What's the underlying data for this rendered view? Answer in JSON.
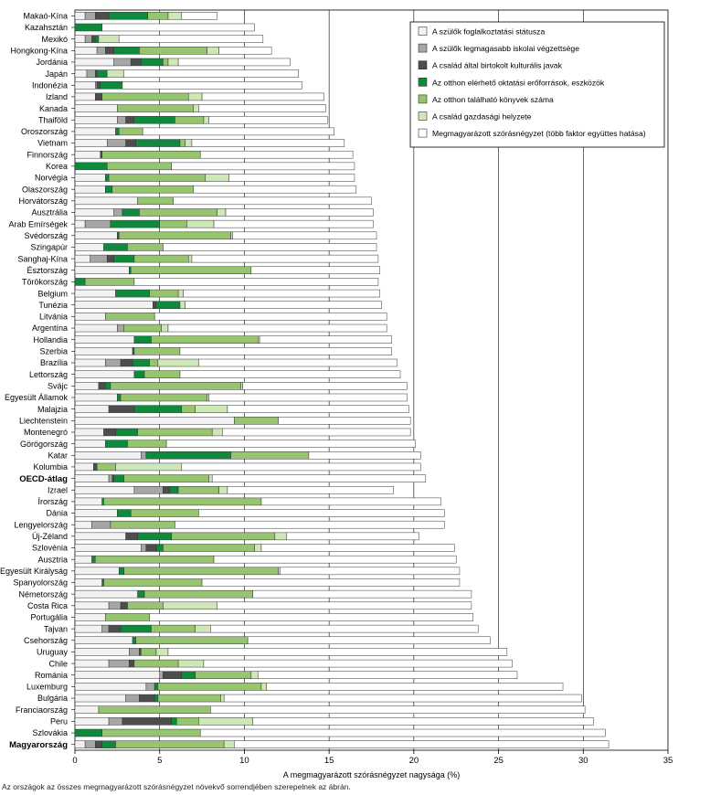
{
  "chart_data": {
    "type": "bar",
    "orientation": "horizontal",
    "stacked": true,
    "xlabel": "A megmagyarázott szórásnégyzet nagysága (%)",
    "xlim": [
      0,
      35
    ],
    "xticks": [
      0,
      5,
      10,
      15,
      20,
      25,
      30,
      35
    ],
    "grid": true,
    "legend_position": "top-right",
    "footnote": "Az országok az összes megmagyarázott szórásnégyzet növekvő sorrendjében szerepelnek az ábrán.",
    "bold_categories": [
      "OECD-átlag",
      "Magyarország"
    ],
    "series": [
      {
        "name": "A szülők foglalkoztatási státusza",
        "color": "#f2f2f2"
      },
      {
        "name": "A szülők legmagasabb iskolai végzettsége",
        "color": "#a6a6a6"
      },
      {
        "name": "A család által birtokolt kulturális javak",
        "color": "#4d4d4d"
      },
      {
        "name": "Az otthon elérhető oktatási erőforrások, eszközök",
        "color": "#0f8a3c"
      },
      {
        "name": "Az otthon található könyvek száma",
        "color": "#96c46f"
      },
      {
        "name": "A család gazdasági helyzete",
        "color": "#cfe6b8"
      },
      {
        "name": "Megmagyarázott szórásnégyzet (több faktor együttes hatása)",
        "color": "#ffffff"
      }
    ],
    "categories": [
      "Makaó-Kína",
      "Kazahsztán",
      "Mexikó",
      "Hongkong-Kína",
      "Jordánia",
      "Japán",
      "Indonézia",
      "Izland",
      "Kanada",
      "Thaiföld",
      "Oroszország",
      "Vietnam",
      "Finnország",
      "Korea",
      "Norvégia",
      "Olaszország",
      "Horvátország",
      "Ausztrália",
      "Arab Emírségek",
      "Svédország",
      "Szingapúr",
      "Sanghaj-Kína",
      "Észtország",
      "Törökország",
      "Belgium",
      "Tunézia",
      "Litvánia",
      "Argentína",
      "Hollandia",
      "Szerbia",
      "Brazília",
      "Lettország",
      "Svájc",
      "Egyesült Államok",
      "Malajzia",
      "Liechtenstein",
      "Montenegró",
      "Görögország",
      "Katar",
      "Kolumbia",
      "OECD-átlag",
      "Izrael",
      "Írország",
      "Dánia",
      "Lengyelország",
      "Új-Zéland",
      "Szlovénia",
      "Ausztria",
      "Egyesült Királyság",
      "Spanyolország",
      "Németország",
      "Costa Rica",
      "Portugália",
      "Tajvan",
      "Csehország",
      "Uruguay",
      "Chile",
      "Románia",
      "Luxemburg",
      "Bulgária",
      "Franciaország",
      "Peru",
      "Szlovákia",
      "Magyarország"
    ],
    "values": [
      [
        0.6,
        0.6,
        0.8,
        2.3,
        1.2,
        0.8,
        2.1
      ],
      [
        0,
        0,
        0,
        1.6,
        0,
        0,
        9.0
      ],
      [
        0.6,
        0.4,
        0.2,
        0.2,
        0,
        1.2,
        8.5
      ],
      [
        1.3,
        0.5,
        0.5,
        1.5,
        4.0,
        0.7,
        3.1
      ],
      [
        2.3,
        1.0,
        0.6,
        1.3,
        0.3,
        0.6,
        6.6
      ],
      [
        0.7,
        0.5,
        0.1,
        0.6,
        0,
        1.0,
        10.3
      ],
      [
        1.2,
        0.1,
        0.2,
        1.3,
        0,
        0,
        10.6
      ],
      [
        1.2,
        0,
        0.4,
        0,
        5.1,
        0.8,
        7.2
      ],
      [
        2.5,
        0,
        0,
        0,
        4.5,
        0.3,
        7.5
      ],
      [
        2.5,
        0.5,
        0.5,
        2.4,
        1.7,
        0.3,
        7.0
      ],
      [
        2.4,
        0,
        0,
        0.2,
        1.4,
        0,
        11.3
      ],
      [
        1.9,
        1.1,
        0.6,
        2.6,
        0.3,
        0.4,
        9.0
      ],
      [
        1.5,
        0,
        0.1,
        0,
        5.8,
        0,
        9.0
      ],
      [
        0,
        0,
        0,
        1.9,
        3.8,
        0,
        10.8
      ],
      [
        1.8,
        0,
        0,
        0.2,
        5.7,
        1.4,
        7.4
      ],
      [
        1.8,
        0,
        0,
        0.4,
        4.8,
        0,
        9.6
      ],
      [
        3.7,
        0,
        0,
        0,
        2.1,
        0,
        11.7
      ],
      [
        2.3,
        0.5,
        0,
        1.0,
        4.6,
        0.5,
        8.7
      ],
      [
        0.6,
        1.5,
        0,
        2.9,
        1.6,
        1.6,
        9.4
      ],
      [
        2.5,
        0,
        0.1,
        0,
        6.6,
        0.1,
        8.5
      ],
      [
        1.7,
        0,
        0,
        1.4,
        2.1,
        0,
        12.6
      ],
      [
        0.9,
        1.0,
        0.4,
        1.2,
        3.2,
        0.2,
        11.0
      ],
      [
        3.2,
        0,
        0,
        0.1,
        7.1,
        0,
        7.6
      ],
      [
        0,
        0,
        0,
        0.6,
        2.9,
        0,
        14.4
      ],
      [
        2.4,
        0,
        0,
        2.0,
        1.7,
        0.3,
        11.6
      ],
      [
        4.6,
        0,
        0.2,
        1.4,
        0,
        0.3,
        11.6
      ],
      [
        1.8,
        0,
        0,
        0,
        2.9,
        0,
        13.7
      ],
      [
        2.5,
        0.4,
        0,
        0,
        2.2,
        0.4,
        12.9
      ],
      [
        3.5,
        0,
        0,
        1.0,
        6.3,
        0.1,
        7.8
      ],
      [
        3.4,
        0,
        0.1,
        0,
        2.7,
        0,
        12.5
      ],
      [
        1.8,
        0.9,
        0.7,
        1.0,
        0.5,
        2.4,
        11.7
      ],
      [
        3.5,
        0,
        0,
        0.6,
        2.1,
        0,
        13.0
      ],
      [
        1.4,
        0,
        0.4,
        0.3,
        7.7,
        0.1,
        9.7
      ],
      [
        2.5,
        0,
        0,
        0.2,
        5.1,
        0.1,
        11.7
      ],
      [
        2.0,
        0,
        1.5,
        2.8,
        0.8,
        1.9,
        10.7
      ],
      [
        9.4,
        0,
        0,
        0,
        2.6,
        0,
        7.8
      ],
      [
        1.7,
        0,
        0.7,
        1.3,
        4.4,
        0.6,
        11.1
      ],
      [
        1.8,
        0,
        0,
        1.3,
        2.3,
        0,
        14.7
      ],
      [
        3.9,
        0.3,
        0,
        5.0,
        4.6,
        0,
        6.6
      ],
      [
        1.1,
        0,
        0.2,
        0,
        1.1,
        3.9,
        14.1
      ],
      [
        2.0,
        0.2,
        0.1,
        0.6,
        5.0,
        0.2,
        12.6
      ],
      [
        3.5,
        1.7,
        0.4,
        0.5,
        2.4,
        0.5,
        9.8
      ],
      [
        1.6,
        0,
        0,
        0.1,
        9.3,
        0,
        10.6
      ],
      [
        2.5,
        0,
        0,
        0.8,
        4.0,
        0,
        14.5
      ],
      [
        1.0,
        1.1,
        0,
        0,
        3.8,
        0,
        15.9
      ],
      [
        3.0,
        0,
        0.7,
        2.0,
        6.1,
        0.7,
        7.8
      ],
      [
        3.9,
        0.3,
        0.6,
        0.4,
        5.4,
        0.4,
        11.4
      ],
      [
        1.0,
        0,
        0,
        0.2,
        7.0,
        0,
        14.3
      ],
      [
        2.6,
        0,
        0,
        0.3,
        9.1,
        0.1,
        10.6
      ],
      [
        1.6,
        0,
        0.1,
        0,
        5.8,
        0,
        15.2
      ],
      [
        3.7,
        0,
        0,
        0.4,
        6.4,
        0,
        12.9
      ],
      [
        2.0,
        0.7,
        0.4,
        0,
        2.1,
        3.2,
        15.0
      ],
      [
        1.8,
        0,
        0,
        0,
        2.6,
        0,
        19.1
      ],
      [
        1.6,
        0.4,
        0.7,
        1.8,
        2.6,
        0.9,
        15.8
      ],
      [
        3.4,
        0,
        0,
        0.2,
        6.6,
        0,
        14.3
      ],
      [
        3.2,
        0.6,
        0.1,
        0,
        0.9,
        0.7,
        20.0
      ],
      [
        2.0,
        1.2,
        0.3,
        0,
        2.6,
        1.5,
        18.2
      ],
      [
        5.0,
        0.2,
        1.1,
        0.8,
        3.3,
        0.4,
        15.3
      ],
      [
        4.2,
        0.5,
        0,
        0.2,
        6.1,
        0.3,
        17.5
      ],
      [
        3.0,
        0.8,
        0.9,
        0.2,
        3.7,
        0.2,
        21.1
      ],
      [
        1.4,
        0,
        0,
        0,
        6.6,
        0,
        22.1
      ],
      [
        2.0,
        0.8,
        2.9,
        0.3,
        1.3,
        3.2,
        20.1
      ],
      [
        0,
        0,
        0,
        1.6,
        5.8,
        0,
        23.9
      ],
      [
        0.6,
        0.6,
        0.4,
        0.8,
        6.4,
        0.6,
        22.1
      ]
    ]
  }
}
